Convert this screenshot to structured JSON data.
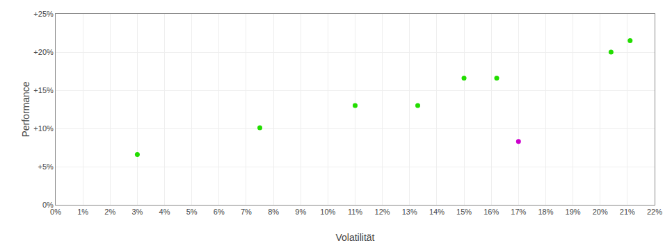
{
  "chart_data": {
    "type": "scatter",
    "xlabel": "Volatilität",
    "ylabel": "Performance",
    "xlim": [
      0,
      0.22
    ],
    "ylim": [
      0,
      0.25
    ],
    "xticks": [
      {
        "value": 0.0,
        "label": "0%"
      },
      {
        "value": 0.01,
        "label": "1%"
      },
      {
        "value": 0.02,
        "label": "2%"
      },
      {
        "value": 0.03,
        "label": "3%"
      },
      {
        "value": 0.04,
        "label": "4%"
      },
      {
        "value": 0.05,
        "label": "5%"
      },
      {
        "value": 0.06,
        "label": "6%"
      },
      {
        "value": 0.07,
        "label": "7%"
      },
      {
        "value": 0.08,
        "label": "8%"
      },
      {
        "value": 0.09,
        "label": "9%"
      },
      {
        "value": 0.1,
        "label": "10%"
      },
      {
        "value": 0.11,
        "label": "11%"
      },
      {
        "value": 0.12,
        "label": "12%"
      },
      {
        "value": 0.13,
        "label": "13%"
      },
      {
        "value": 0.14,
        "label": "14%"
      },
      {
        "value": 0.15,
        "label": "15%"
      },
      {
        "value": 0.16,
        "label": "16%"
      },
      {
        "value": 0.17,
        "label": "17%"
      },
      {
        "value": 0.18,
        "label": "18%"
      },
      {
        "value": 0.19,
        "label": "19%"
      },
      {
        "value": 0.2,
        "label": "20%"
      },
      {
        "value": 0.21,
        "label": "21%"
      },
      {
        "value": 0.22,
        "label": "22%"
      }
    ],
    "yticks": [
      {
        "value": 0.0,
        "label": "0%"
      },
      {
        "value": 0.05,
        "label": "+5%"
      },
      {
        "value": 0.1,
        "label": "+10%"
      },
      {
        "value": 0.15,
        "label": "+15%"
      },
      {
        "value": 0.2,
        "label": "+20%"
      },
      {
        "value": 0.25,
        "label": "+25%"
      }
    ],
    "grid": true,
    "series": [
      {
        "color": "#22dd00",
        "x": [
          0.03,
          0.075,
          0.11,
          0.133,
          0.15,
          0.162,
          0.204,
          0.211
        ],
        "values": [
          0.066,
          0.101,
          0.13,
          0.13,
          0.166,
          0.166,
          0.2,
          0.215
        ]
      },
      {
        "color": "#cc00cc",
        "x": [
          0.17
        ],
        "values": [
          0.083
        ]
      }
    ]
  }
}
